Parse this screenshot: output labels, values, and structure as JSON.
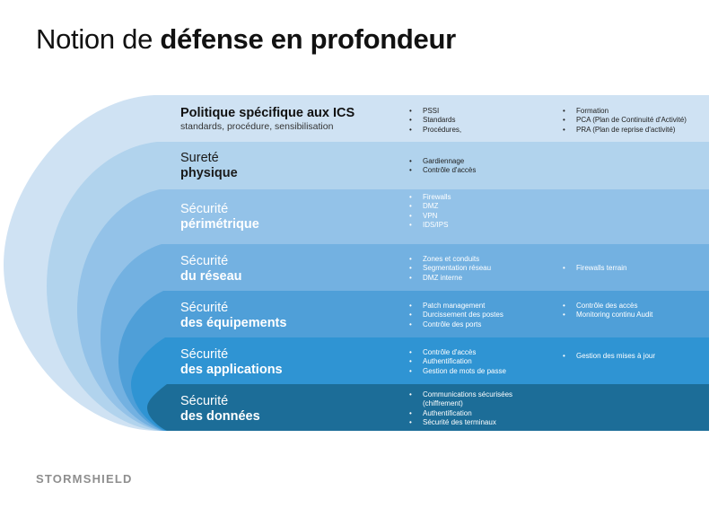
{
  "title": {
    "normal": "Notion de ",
    "bold": "défense en profondeur"
  },
  "colors": {
    "layer1": "#cfe2f3",
    "layer2": "#b1d3ed",
    "layer3": "#93c2e8",
    "layer4": "#73b1e1",
    "layer5": "#4f9fd8",
    "layer6": "#2f94d3",
    "layer7": "#1c6d98",
    "accent_dark": "#1c6d98",
    "logo": "#8e8e8e"
  },
  "layers": [
    {
      "line1": "Politique spécifique aux ICS",
      "subtitle": "standards, procédure, sensibilisation",
      "col1": [
        "PSSI",
        "Standards",
        "Procédures,"
      ],
      "col2": [
        "Formation",
        "PCA (Plan de Continuité d'Activité)",
        "PRA (Plan de reprise d'activité)"
      ]
    },
    {
      "line1": "Sureté",
      "line2": "physique",
      "col1": [
        "Gardiennage",
        "Contrôle d'accès"
      ],
      "col2": []
    },
    {
      "line1": "Sécurité",
      "line2": "périmétrique",
      "col1": [
        "Firewalls",
        "DMZ",
        "VPN",
        "IDS/IPS"
      ],
      "col2": []
    },
    {
      "line1": "Sécurité",
      "line2": "du réseau",
      "col1": [
        "Zones et conduits",
        "Segmentation réseau",
        "DMZ interne"
      ],
      "col2": [
        "Firewalls terrain"
      ]
    },
    {
      "line1": "Sécurité",
      "line2": "des équipements",
      "col1": [
        "Patch management",
        "Durcissement des postes",
        "Contrôle des ports"
      ],
      "col2": [
        "Contrôle des accès",
        "Monitoring continu Audit"
      ]
    },
    {
      "line1": "Sécurité",
      "line2": "des applications",
      "col1": [
        "Contrôle d'accès",
        "Authentification",
        "Gestion de mots de passe"
      ],
      "col2": [
        "Gestion des mises à jour"
      ]
    },
    {
      "line1": "Sécurité",
      "line2": "des données",
      "col1": [
        "Communications sécurisées",
        "(chiffrement)",
        "Authentification",
        "Sécurité des terminaux"
      ],
      "col2": []
    }
  ],
  "logo": "STORMSHIELD"
}
